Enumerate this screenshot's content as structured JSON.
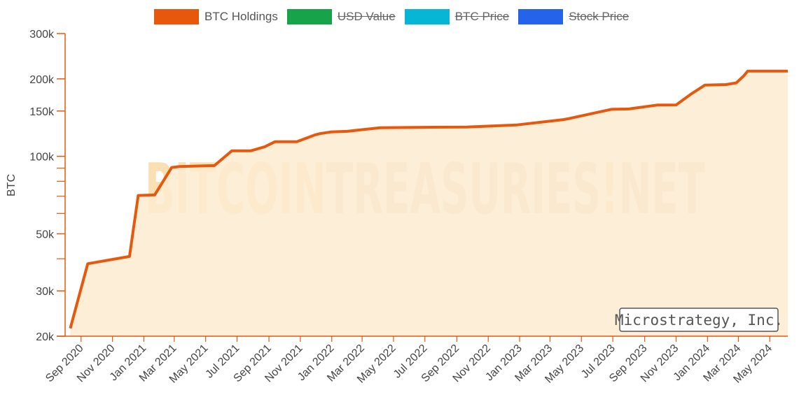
{
  "legend": [
    {
      "label": "BTC Holdings",
      "color": "#e8580c",
      "hidden": false
    },
    {
      "label": "USD Value",
      "color": "#16a34a",
      "hidden": true
    },
    {
      "label": "BTC Price",
      "color": "#06b6d4",
      "hidden": true
    },
    {
      "label": "Stock Price",
      "color": "#2563eb",
      "hidden": true
    }
  ],
  "watermark": {
    "part1": "BITCOIN",
    "part2": "TREASURIES",
    "dot": "!",
    "part3": "NET"
  },
  "company": "Microstrategy, Inc.",
  "colors": {
    "line": "#e8580c",
    "fill": "#fdebd0",
    "axis": "#e8580c",
    "watermark1": "#f9d9a6",
    "watermark2": "#e6d6c2"
  },
  "chart_data": {
    "type": "area",
    "title": "",
    "xlabel": "",
    "ylabel": "BTC",
    "yscale": "log",
    "ylim": [
      20000,
      300000
    ],
    "xlim": [
      "2020-08-01",
      "2024-06-05"
    ],
    "grid": false,
    "legend_position": "top",
    "y_ticks": [
      {
        "value": 20000,
        "label": "20k"
      },
      {
        "value": 30000,
        "label": "30k"
      },
      {
        "value": 50000,
        "label": "50k"
      },
      {
        "value": 100000,
        "label": "100k"
      },
      {
        "value": 150000,
        "label": "150k"
      },
      {
        "value": 200000,
        "label": "200k"
      },
      {
        "value": 300000,
        "label": "300k"
      }
    ],
    "y_minor_ticks": [
      40000,
      60000,
      70000,
      80000,
      90000
    ],
    "x_ticks": [
      {
        "date": "2020-09-01",
        "label": "Sep 2020"
      },
      {
        "date": "2020-11-01",
        "label": "Nov 2020"
      },
      {
        "date": "2021-01-01",
        "label": "Jan 2021"
      },
      {
        "date": "2021-03-01",
        "label": "Mar 2021"
      },
      {
        "date": "2021-05-01",
        "label": "May 2021"
      },
      {
        "date": "2021-07-01",
        "label": "Jul 2021"
      },
      {
        "date": "2021-09-01",
        "label": "Sep 2021"
      },
      {
        "date": "2021-11-01",
        "label": "Nov 2021"
      },
      {
        "date": "2022-01-01",
        "label": "Jan 2022"
      },
      {
        "date": "2022-03-01",
        "label": "Mar 2022"
      },
      {
        "date": "2022-05-01",
        "label": "May 2022"
      },
      {
        "date": "2022-07-01",
        "label": "Jul 2022"
      },
      {
        "date": "2022-09-01",
        "label": "Sep 2022"
      },
      {
        "date": "2022-11-01",
        "label": "Nov 2022"
      },
      {
        "date": "2023-01-01",
        "label": "Jan 2023"
      },
      {
        "date": "2023-03-01",
        "label": "Mar 2023"
      },
      {
        "date": "2023-05-01",
        "label": "May 2023"
      },
      {
        "date": "2023-07-01",
        "label": "Jul 2023"
      },
      {
        "date": "2023-09-01",
        "label": "Sep 2023"
      },
      {
        "date": "2023-11-01",
        "label": "Nov 2023"
      },
      {
        "date": "2024-01-01",
        "label": "Jan 2024"
      },
      {
        "date": "2024-03-01",
        "label": "Mar 2024"
      },
      {
        "date": "2024-05-01",
        "label": "May 2024"
      }
    ],
    "series": [
      {
        "name": "BTC Holdings",
        "x": [
          "2020-08-11",
          "2020-09-14",
          "2020-12-04",
          "2020-12-21",
          "2021-01-22",
          "2021-02-24",
          "2021-03-12",
          "2021-04-05",
          "2021-05-18",
          "2021-06-21",
          "2021-07-28",
          "2021-08-24",
          "2021-09-13",
          "2021-10-25",
          "2021-11-29",
          "2021-12-09",
          "2021-12-30",
          "2022-01-31",
          "2022-04-05",
          "2022-06-29",
          "2022-09-20",
          "2022-12-27",
          "2023-03-27",
          "2023-04-05",
          "2023-06-28",
          "2023-08-01",
          "2023-09-25",
          "2023-11-01",
          "2023-11-30",
          "2023-12-27",
          "2024-02-06",
          "2024-02-26",
          "2024-03-11",
          "2024-03-19",
          "2024-04-26",
          "2024-06-05"
        ],
        "y": [
          21454,
          38250,
          40824,
          70470,
          70784,
          90531,
          91326,
          91579,
          92079,
          105085,
          105085,
          108992,
          114042,
          114042,
          121044,
          122478,
          124391,
          125051,
          129218,
          129699,
          130000,
          132500,
          138955,
          140000,
          152333,
          152800,
          158245,
          158400,
          174530,
          189150,
          190000,
          193000,
          205000,
          214246,
          214400,
          214400
        ]
      }
    ]
  }
}
